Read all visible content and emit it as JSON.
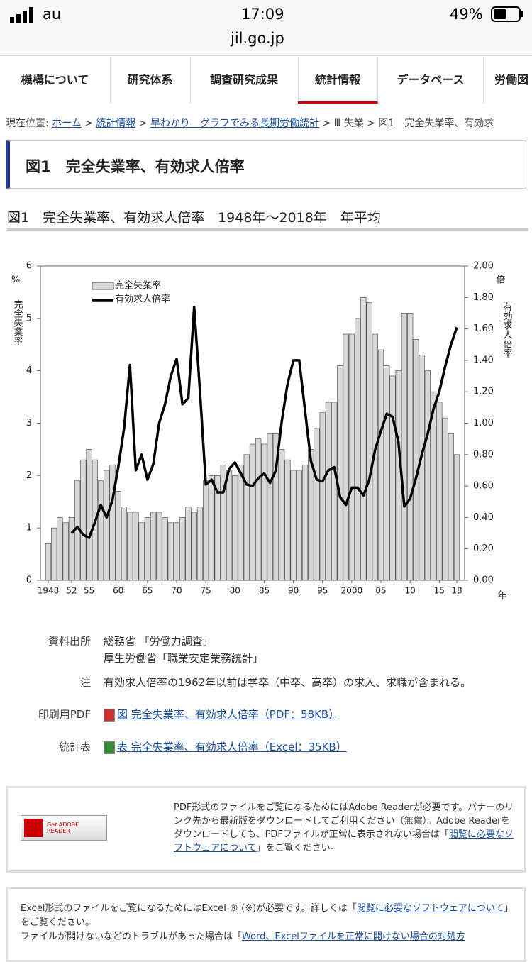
{
  "status": {
    "carrier": "au",
    "time": "17:09",
    "battery": "49%",
    "url": "jil.go.jp"
  },
  "nav": [
    "機構について",
    "研究体系",
    "調査研究成果",
    "統計情報",
    "データベース",
    "労働図"
  ],
  "breadcrumb": [
    "現在位置:",
    "ホーム",
    ">",
    "統計情報",
    ">",
    "早わかり　グラフでみる長期労働統計",
    "> Ⅲ 失業 > 図1　完全失業率、有効求"
  ],
  "heading": "図1　完全失業率、有効求人倍率",
  "chart_data": {
    "type": "bar_line",
    "title": "図1　完全失業率、有効求人倍率　1948年～2018年　年平均",
    "y_label_unit": "%",
    "y_label": "完全失業率",
    "y2_label_unit": "倍",
    "y2_label": "有効求人倍率",
    "x_label": "年",
    "categories": [
      "1948",
      null,
      null,
      null,
      "52",
      null,
      null,
      "55",
      null,
      null,
      null,
      null,
      "60",
      null,
      null,
      null,
      null,
      "65",
      null,
      null,
      null,
      null,
      "70",
      null,
      null,
      null,
      null,
      "75",
      null,
      null,
      null,
      null,
      "80",
      null,
      null,
      null,
      null,
      "85",
      null,
      null,
      null,
      null,
      "90",
      null,
      null,
      null,
      null,
      "95",
      null,
      null,
      null,
      null,
      "2000",
      null,
      null,
      null,
      null,
      "05",
      null,
      null,
      null,
      null,
      "10",
      null,
      null,
      null,
      null,
      "15",
      null,
      null,
      "18"
    ],
    "series": [
      {
        "name": "完全失業率",
        "color": "#d9d9d9",
        "values": [
          0.7,
          1.0,
          1.2,
          1.1,
          1.2,
          1.9,
          2.3,
          2.5,
          2.3,
          1.9,
          2.1,
          2.2,
          1.7,
          1.4,
          1.3,
          1.3,
          1.1,
          1.2,
          1.3,
          1.3,
          1.2,
          1.1,
          1.1,
          1.2,
          1.4,
          1.3,
          1.4,
          1.9,
          2.0,
          2.0,
          2.2,
          2.1,
          2.0,
          2.2,
          2.4,
          2.6,
          2.7,
          2.6,
          2.8,
          2.8,
          2.5,
          2.3,
          2.1,
          2.1,
          2.2,
          2.5,
          2.9,
          3.2,
          3.4,
          3.4,
          4.1,
          4.7,
          4.7,
          5.0,
          5.4,
          5.3,
          4.7,
          4.4,
          4.1,
          3.9,
          4.0,
          5.1,
          5.1,
          4.6,
          4.3,
          4.0,
          3.6,
          3.4,
          3.1,
          2.8,
          2.4
        ]
      },
      {
        "name": "有効求人倍率",
        "color": "#000000",
        "axis": "y2",
        "values": [
          null,
          null,
          null,
          null,
          0.3,
          0.34,
          0.29,
          0.27,
          0.37,
          0.48,
          0.4,
          0.51,
          0.72,
          0.97,
          1.37,
          0.7,
          0.8,
          0.64,
          0.74,
          1.0,
          1.12,
          1.3,
          1.41,
          1.12,
          1.16,
          1.74,
          1.2,
          0.61,
          0.64,
          0.56,
          0.56,
          0.71,
          0.75,
          0.68,
          0.61,
          0.6,
          0.65,
          0.68,
          0.62,
          0.7,
          1.01,
          1.25,
          1.4,
          1.4,
          1.08,
          0.76,
          0.64,
          0.63,
          0.7,
          0.72,
          0.53,
          0.48,
          0.59,
          0.59,
          0.54,
          0.64,
          0.83,
          0.95,
          1.06,
          1.04,
          0.88,
          0.47,
          0.52,
          0.65,
          0.8,
          0.93,
          1.09,
          1.2,
          1.36,
          1.5,
          1.61
        ]
      }
    ],
    "ylim": [
      0,
      6
    ],
    "yticks": [
      0,
      1,
      2,
      3,
      4,
      5,
      6
    ],
    "y2lim": [
      0,
      2
    ],
    "y2ticks": [
      {
        "value": 0,
        "label": "0.00"
      },
      {
        "value": 0.2,
        "label": "0.20"
      },
      {
        "value": 0.4,
        "label": "0.40"
      },
      {
        "value": 0.6,
        "label": "0.60"
      },
      {
        "value": 0.8,
        "label": "0.80"
      },
      {
        "value": 1,
        "label": "1.00"
      },
      {
        "value": 1.2,
        "label": "1.20"
      },
      {
        "value": 1.4,
        "label": "1.40"
      },
      {
        "value": 1.6,
        "label": "1.60"
      },
      {
        "value": 1.8,
        "label": "1.80"
      },
      {
        "value": 2,
        "label": "2.00"
      }
    ],
    "legend": "upper left"
  },
  "notes": [
    {
      "label": "資料出所",
      "text": [
        "総務省 「労働力調査」",
        "厚生労働省「職業安定業務統計」"
      ]
    },
    {
      "label": "注",
      "text": [
        "有効求人倍率の1962年以前は学卒（中卒、高卒）の求人、求職が含まれる。"
      ]
    }
  ],
  "downloads": [
    {
      "label": "印刷用PDF",
      "link": "図 完全失業率、有効求人倍率（PDF：58KB）"
    },
    {
      "label": "統計表",
      "link": "表 完全失業率、有効求人倍率（Excel：35KB）"
    }
  ],
  "adobe": {
    "banner": "Get ADOBE READER",
    "text": "PDF形式のファイルをご覧になるためにはAdobe Readerが必要です。バナーのリンク先から最新版をダウンロードしてご利用ください（無償）。Adobe Readerをダウンロードしても、PDFファイルが正常に表示されない場合は「",
    "link": "閲覧に必要なソフトウェアについて",
    "tail": "」をご覧ください。"
  },
  "excel": {
    "text1": "Excel形式のファイルをご覧になるためにはExcel ® (※)が必要です。詳しくは「",
    "link1": "閲覧に必要なソフトウェアについて",
    "tail1": "」をご覧ください。",
    "text2": "ファイルが開けないなどのトラブルがあった場合は「",
    "link2": "Word、Excelファイルを正常に開けない場合の対処方"
  }
}
